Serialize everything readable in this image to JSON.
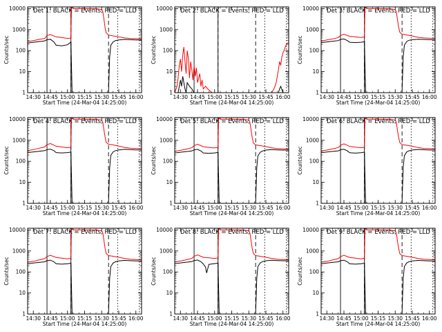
{
  "figure": {
    "background": "#ffffff",
    "panel_titles": [
      "Det 1: BLACK = Events, RED = LLD",
      "Det 2: BLACK = Events, RED = LLD",
      "Det 3: BLACK = Events, RED = LLD",
      "Det 4: BLACK = Events, RED = LLD",
      "Det 5: BLACK = Events, RED = LLD",
      "Det 6: BLACK = Events, RED = LLD",
      "Det 7: BLACK = Events, RED = LLD",
      "Det 8: BLACK = Events, RED = LLD",
      "Det 9: BLACK = Events, RED = LLD"
    ]
  },
  "chart_data": {
    "type": "line",
    "yscale": "log",
    "ylim": [
      1,
      12000
    ],
    "xlim": [
      "14:25",
      "16:05"
    ],
    "xticks": [
      "14:30",
      "14:45",
      "15:00",
      "15:15",
      "15:30",
      "15:45",
      "16:00"
    ],
    "yticks": [
      "1",
      "10",
      "100",
      "1000",
      "10000"
    ],
    "ylabel": "Counts/sec",
    "xlabel": "Start Time (24-Mar-04 14:25:00)",
    "colors": {
      "events": "#000000",
      "lld": "#ff0000",
      "axes": "#000000"
    },
    "markers": {
      "solid": [
        "14:42",
        "15:03"
      ],
      "dashed": [
        "15:03",
        "15:36"
      ],
      "dotted": [
        "15:44",
        "16:03"
      ]
    },
    "panels": [
      {
        "det": 1,
        "lld_x": [
          "14:25",
          "14:30",
          "14:35",
          "14:40",
          "14:42",
          "14:45",
          "14:50",
          "14:55",
          "15:00",
          "15:02",
          "15:03",
          "15:03.5",
          "15:05",
          "15:10",
          "15:15",
          "15:20",
          "15:25",
          "15:30",
          "15:31",
          "15:32",
          "15:33",
          "15:34",
          "15:36",
          "15:40",
          "15:45",
          "15:50",
          "15:55",
          "16:00",
          "16:05"
        ],
        "lld_y": [
          270,
          300,
          340,
          380,
          520,
          580,
          450,
          420,
          380,
          390,
          400,
          12000,
          10000,
          10000,
          10000,
          10000,
          10000,
          9000,
          7000,
          3000,
          1200,
          700,
          550,
          500,
          450,
          400,
          380,
          370,
          360
        ],
        "events_x": [
          "14:25",
          "14:30",
          "14:35",
          "14:40",
          "14:42",
          "14:45",
          "14:48",
          "14:50",
          "14:55",
          "15:00",
          "15:02",
          "15:03",
          "15:04",
          "15:05",
          "15:36",
          "15:37",
          "15:38",
          "15:40",
          "15:42",
          "15:45",
          "15:50",
          "15:55",
          "16:00",
          "16:05"
        ],
        "events_y": [
          230,
          250,
          270,
          290,
          330,
          350,
          260,
          180,
          170,
          190,
          230,
          260,
          1,
          1,
          1,
          50,
          180,
          260,
          300,
          320,
          340,
          330,
          320,
          320
        ]
      },
      {
        "det": 2,
        "lld_x": [
          "14:25",
          "14:27",
          "14:28",
          "14:29",
          "14:30",
          "14:31",
          "14:32",
          "14:33",
          "14:34",
          "14:35",
          "14:36",
          "14:37",
          "14:38",
          "14:39",
          "14:40",
          "14:41",
          "14:42",
          "14:43",
          "14:44",
          "14:45",
          "14:47",
          "14:48",
          "14:49",
          "14:50",
          "14:52",
          "14:54",
          "14:56",
          "14:58",
          "15:00",
          "15:01",
          "15:02",
          "15:35",
          "15:50",
          "15:52",
          "15:53",
          "15:54",
          "15:55",
          "15:56",
          "15:57",
          "15:58",
          "15:59",
          "16:00",
          "16:01",
          "16:02",
          "16:03",
          "16:05"
        ],
        "lld_y": [
          1,
          2,
          5,
          20,
          40,
          10,
          60,
          150,
          30,
          8,
          100,
          40,
          5,
          30,
          12,
          4,
          20,
          6,
          15,
          3,
          8,
          2,
          4,
          1.5,
          2,
          1.5,
          1.2,
          1,
          1,
          1,
          1,
          1,
          1,
          1.5,
          2,
          3,
          6,
          12,
          30,
          20,
          50,
          80,
          100,
          150,
          200,
          250
        ],
        "events_x": [
          "14:25",
          "14:28",
          "14:29",
          "14:30",
          "14:31",
          "14:32",
          "14:33",
          "14:34",
          "14:35",
          "14:36",
          "14:38",
          "14:40",
          "14:42",
          "14:45",
          "15:05",
          "15:30",
          "15:50",
          "15:56",
          "15:57",
          "15:58",
          "16:00",
          "16:02",
          "16:05"
        ],
        "events_y": [
          1,
          1,
          2,
          4,
          2,
          6,
          3,
          1.5,
          1,
          3,
          2,
          1.5,
          1,
          1,
          1,
          1,
          1,
          1,
          1.5,
          2,
          1,
          1,
          1
        ]
      },
      {
        "det": 3,
        "lld_x": [
          "14:25",
          "14:30",
          "14:35",
          "14:40",
          "14:42",
          "14:45",
          "14:50",
          "14:55",
          "15:00",
          "15:02",
          "15:03",
          "15:03.5",
          "15:05",
          "15:10",
          "15:15",
          "15:20",
          "15:25",
          "15:30",
          "15:31",
          "15:32",
          "15:33",
          "15:34",
          "15:36",
          "15:40",
          "15:45",
          "15:50",
          "15:55",
          "16:00",
          "16:05"
        ],
        "lld_y": [
          280,
          320,
          360,
          420,
          530,
          600,
          480,
          450,
          420,
          440,
          450,
          12000,
          10000,
          10000,
          10000,
          10000,
          10000,
          9000,
          7000,
          3000,
          1300,
          750,
          600,
          560,
          500,
          430,
          400,
          390,
          380
        ],
        "events_x": [
          "14:25",
          "14:30",
          "14:35",
          "14:40",
          "14:42",
          "14:45",
          "14:48",
          "14:50",
          "14:55",
          "15:00",
          "15:02",
          "15:03",
          "15:04",
          "15:05",
          "15:36",
          "15:37",
          "15:38",
          "15:40",
          "15:42",
          "15:45",
          "15:50",
          "15:55",
          "16:00",
          "16:05"
        ],
        "events_y": [
          240,
          260,
          280,
          300,
          340,
          360,
          300,
          250,
          240,
          250,
          260,
          270,
          1,
          1,
          1,
          50,
          180,
          270,
          310,
          330,
          350,
          340,
          330,
          330
        ]
      },
      {
        "det": 4,
        "lld_x": [
          "14:25",
          "14:30",
          "14:35",
          "14:40",
          "14:42",
          "14:45",
          "14:50",
          "14:55",
          "15:00",
          "15:02",
          "15:03",
          "15:03.5",
          "15:05",
          "15:10",
          "15:15",
          "15:20",
          "15:25",
          "15:30",
          "15:31",
          "15:32",
          "15:33",
          "15:34",
          "15:36",
          "15:40",
          "15:45",
          "15:50",
          "15:55",
          "16:00",
          "16:05"
        ],
        "lld_y": [
          320,
          360,
          420,
          480,
          620,
          700,
          520,
          480,
          440,
          460,
          470,
          12000,
          10000,
          10000,
          10000,
          10000,
          10000,
          9000,
          7000,
          3000,
          1400,
          800,
          650,
          600,
          530,
          460,
          420,
          410,
          400
        ],
        "events_x": [
          "14:25",
          "14:30",
          "14:35",
          "14:40",
          "14:42",
          "14:45",
          "14:48",
          "14:50",
          "14:55",
          "15:00",
          "15:02",
          "15:03",
          "15:04",
          "15:05",
          "15:36",
          "15:37",
          "15:38",
          "15:40",
          "15:42",
          "15:45",
          "15:50",
          "15:55",
          "16:00",
          "16:05"
        ],
        "events_y": [
          260,
          280,
          300,
          320,
          360,
          380,
          320,
          260,
          250,
          260,
          270,
          280,
          1,
          1,
          1,
          50,
          190,
          280,
          320,
          350,
          370,
          360,
          350,
          350
        ]
      },
      {
        "det": 5,
        "lld_x": [
          "14:25",
          "14:30",
          "14:35",
          "14:40",
          "14:42",
          "14:45",
          "14:50",
          "14:55",
          "15:00",
          "15:02",
          "15:03",
          "15:03.5",
          "15:05",
          "15:10",
          "15:15",
          "15:20",
          "15:25",
          "15:30",
          "15:31",
          "15:32",
          "15:33",
          "15:34",
          "15:36",
          "15:40",
          "15:45",
          "15:50",
          "15:55",
          "16:00",
          "16:05"
        ],
        "lld_y": [
          300,
          330,
          380,
          440,
          560,
          650,
          500,
          460,
          430,
          450,
          460,
          12000,
          10000,
          10000,
          10000,
          10000,
          10000,
          9000,
          7000,
          3000,
          1300,
          750,
          600,
          560,
          500,
          440,
          400,
          390,
          380
        ],
        "events_x": [
          "14:25",
          "14:30",
          "14:35",
          "14:40",
          "14:42",
          "14:45",
          "14:48",
          "14:50",
          "14:55",
          "15:00",
          "15:02",
          "15:03",
          "15:04",
          "15:05",
          "15:36",
          "15:37",
          "15:38",
          "15:40",
          "15:42",
          "15:45",
          "15:50",
          "15:55",
          "16:00",
          "16:05"
        ],
        "events_y": [
          250,
          270,
          290,
          310,
          350,
          370,
          310,
          250,
          240,
          250,
          260,
          270,
          1,
          1,
          1,
          50,
          180,
          270,
          310,
          340,
          360,
          350,
          340,
          340
        ]
      },
      {
        "det": 6,
        "lld_x": [
          "14:25",
          "14:30",
          "14:35",
          "14:40",
          "14:42",
          "14:45",
          "14:50",
          "14:55",
          "15:00",
          "15:02",
          "15:03",
          "15:03.5",
          "15:05",
          "15:10",
          "15:15",
          "15:20",
          "15:25",
          "15:30",
          "15:31",
          "15:32",
          "15:33",
          "15:34",
          "15:36",
          "15:40",
          "15:45",
          "15:50",
          "15:55",
          "16:00",
          "16:05"
        ],
        "lld_y": [
          310,
          340,
          390,
          450,
          580,
          680,
          510,
          470,
          440,
          460,
          470,
          12000,
          10000,
          10000,
          10000,
          10000,
          10000,
          9000,
          7000,
          3000,
          1350,
          780,
          620,
          580,
          520,
          450,
          410,
          400,
          390
        ],
        "events_x": [
          "14:25",
          "14:30",
          "14:35",
          "14:40",
          "14:42",
          "14:45",
          "14:48",
          "14:50",
          "14:55",
          "15:00",
          "15:02",
          "15:03",
          "15:04",
          "15:05",
          "15:36",
          "15:37",
          "15:38",
          "15:40",
          "15:42",
          "15:45",
          "15:50",
          "15:55",
          "16:00",
          "16:05"
        ],
        "events_y": [
          255,
          275,
          295,
          315,
          355,
          375,
          315,
          255,
          245,
          255,
          265,
          275,
          1,
          1,
          1,
          50,
          185,
          275,
          315,
          345,
          365,
          355,
          345,
          345
        ]
      },
      {
        "det": 7,
        "lld_x": [
          "14:25",
          "14:30",
          "14:35",
          "14:40",
          "14:42",
          "14:45",
          "14:50",
          "14:55",
          "15:00",
          "15:02",
          "15:03",
          "15:03.5",
          "15:05",
          "15:10",
          "15:15",
          "15:20",
          "15:25",
          "15:30",
          "15:31",
          "15:32",
          "15:33",
          "15:34",
          "15:36",
          "15:40",
          "15:45",
          "15:50",
          "15:55",
          "16:00",
          "16:05"
        ],
        "lld_y": [
          290,
          320,
          370,
          430,
          540,
          620,
          490,
          450,
          420,
          440,
          450,
          12000,
          10000,
          10000,
          10000,
          10000,
          10000,
          9000,
          7000,
          3000,
          1300,
          750,
          600,
          560,
          500,
          440,
          400,
          390,
          380
        ],
        "events_x": [
          "14:25",
          "14:30",
          "14:35",
          "14:40",
          "14:42",
          "14:45",
          "14:48",
          "14:50",
          "14:55",
          "15:00",
          "15:02",
          "15:03",
          "15:04",
          "15:05",
          "15:36",
          "15:37",
          "15:38",
          "15:40",
          "15:42",
          "15:45",
          "15:50",
          "15:55",
          "16:00",
          "16:05"
        ],
        "events_y": [
          245,
          265,
          285,
          305,
          345,
          365,
          305,
          245,
          235,
          245,
          255,
          265,
          1,
          1,
          1,
          50,
          180,
          265,
          305,
          335,
          355,
          345,
          335,
          335
        ]
      },
      {
        "det": 8,
        "lld_x": [
          "14:25",
          "14:30",
          "14:35",
          "14:40",
          "14:42",
          "14:45",
          "14:50",
          "14:55",
          "15:00",
          "15:02",
          "15:03",
          "15:03.5",
          "15:05",
          "15:10",
          "15:15",
          "15:20",
          "15:25",
          "15:30",
          "15:31",
          "15:32",
          "15:33",
          "15:34",
          "15:36",
          "15:40",
          "15:45",
          "15:50",
          "15:55",
          "16:00",
          "16:05"
        ],
        "lld_y": [
          300,
          330,
          380,
          440,
          560,
          650,
          500,
          470,
          440,
          460,
          470,
          12000,
          10000,
          10000,
          10000,
          10000,
          10000,
          9000,
          7000,
          3000,
          1300,
          750,
          600,
          560,
          500,
          440,
          400,
          390,
          380
        ],
        "events_x": [
          "14:25",
          "14:30",
          "14:35",
          "14:40",
          "14:42",
          "14:45",
          "14:48",
          "14:50",
          "14:52",
          "14:53",
          "14:55",
          "15:00",
          "15:02",
          "15:03",
          "15:04",
          "15:05",
          "15:36",
          "15:37",
          "15:38",
          "15:40",
          "15:42",
          "15:45",
          "15:50",
          "15:55",
          "16:00",
          "16:05"
        ],
        "events_y": [
          250,
          270,
          290,
          310,
          350,
          370,
          310,
          240,
          170,
          90,
          230,
          250,
          260,
          270,
          1,
          1,
          1,
          50,
          180,
          270,
          310,
          340,
          360,
          350,
          340,
          340
        ]
      },
      {
        "det": 9,
        "lld_x": [
          "14:25",
          "14:30",
          "14:35",
          "14:40",
          "14:42",
          "14:45",
          "14:50",
          "14:55",
          "15:00",
          "15:02",
          "15:03",
          "15:03.5",
          "15:05",
          "15:10",
          "15:15",
          "15:20",
          "15:25",
          "15:30",
          "15:31",
          "15:32",
          "15:33",
          "15:34",
          "15:36",
          "15:40",
          "15:45",
          "15:50",
          "15:55",
          "16:00",
          "16:05"
        ],
        "lld_y": [
          290,
          320,
          370,
          430,
          540,
          620,
          490,
          450,
          420,
          440,
          450,
          12000,
          10000,
          10000,
          10000,
          10000,
          10000,
          9000,
          7000,
          3000,
          1300,
          750,
          600,
          560,
          500,
          440,
          400,
          390,
          380
        ],
        "events_x": [
          "14:25",
          "14:30",
          "14:35",
          "14:40",
          "14:42",
          "14:45",
          "14:48",
          "14:50",
          "14:55",
          "15:00",
          "15:02",
          "15:03",
          "15:04",
          "15:05",
          "15:36",
          "15:37",
          "15:38",
          "15:40",
          "15:42",
          "15:45",
          "15:50",
          "15:55",
          "16:00",
          "16:05"
        ],
        "events_y": [
          245,
          265,
          285,
          305,
          345,
          365,
          305,
          245,
          235,
          245,
          255,
          265,
          1,
          1,
          1,
          50,
          180,
          265,
          305,
          335,
          355,
          345,
          335,
          335
        ]
      }
    ]
  }
}
